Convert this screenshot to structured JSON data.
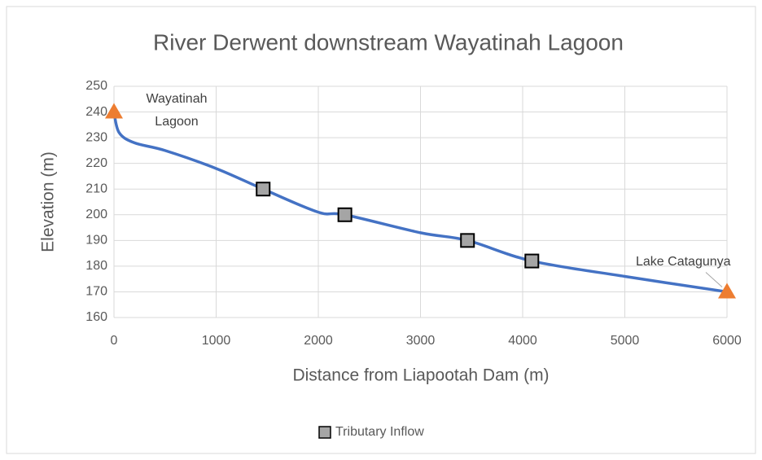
{
  "chart_data": {
    "type": "line",
    "title": "River Derwent downstream Wayatinah Lagoon",
    "xlabel": "Distance from Liapootah Dam (m)",
    "ylabel": "Elevation (m)",
    "series": [
      {
        "color": "#4472c4",
        "x": [
          0,
          50,
          200,
          500,
          1000,
          1460,
          2000,
          2260,
          3000,
          3460,
          4090,
          5000,
          6000
        ],
        "values": [
          240,
          232,
          228,
          225,
          218,
          210,
          201,
          200,
          193,
          190,
          182,
          176,
          170
        ]
      },
      {
        "name": "Tributary Inflow",
        "type": "scatter",
        "marker": "square",
        "color": "#a5a5a5",
        "x": [
          1460,
          2260,
          3460,
          4090
        ],
        "values": [
          210,
          200,
          190,
          182
        ]
      },
      {
        "type": "scatter",
        "marker": "triangle",
        "color": "#ed7d31",
        "x": [
          0,
          6000
        ],
        "values": [
          240,
          170
        ],
        "labels": [
          "Wayatinah Lagoon",
          "Lake Catagunya"
        ]
      }
    ],
    "xlim": [
      0,
      6000
    ],
    "xticks": [
      0,
      1000,
      2000,
      3000,
      4000,
      5000,
      6000
    ],
    "ylim": [
      160,
      250
    ],
    "yticks": [
      160,
      170,
      180,
      190,
      200,
      210,
      220,
      230,
      240,
      250
    ],
    "grid": true,
    "legend": "bottom"
  }
}
